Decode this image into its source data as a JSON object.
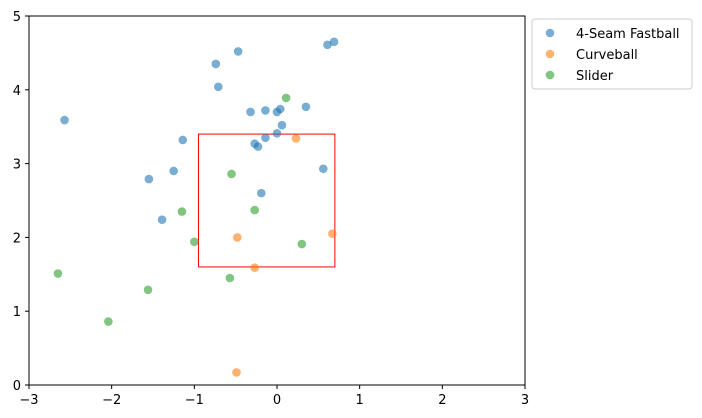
{
  "chart_data": {
    "type": "scatter",
    "title": "",
    "xlabel": "",
    "ylabel": "",
    "xlim": [
      -3,
      3
    ],
    "ylim": [
      0,
      5
    ],
    "xticks": [
      -3,
      -2,
      -1,
      0,
      1,
      2,
      3
    ],
    "yticks": [
      0,
      1,
      2,
      3,
      4,
      5
    ],
    "grid": false,
    "legend_position": "outside-upper-right",
    "strike_zone": {
      "x": [
        -0.95,
        0.7
      ],
      "y": [
        1.6,
        3.4
      ],
      "color": "#ff0000"
    },
    "series": [
      {
        "name": "4-Seam Fastball",
        "color": "#1f77b4",
        "points": [
          [
            -2.57,
            3.59
          ],
          [
            -0.74,
            4.35
          ],
          [
            -0.47,
            4.52
          ],
          [
            -0.71,
            4.04
          ],
          [
            0.61,
            4.61
          ],
          [
            0.69,
            4.65
          ],
          [
            -0.32,
            3.7
          ],
          [
            -0.14,
            3.72
          ],
          [
            0.0,
            3.7
          ],
          [
            0.04,
            3.74
          ],
          [
            0.35,
            3.77
          ],
          [
            0.06,
            3.52
          ],
          [
            0.0,
            3.41
          ],
          [
            -0.14,
            3.35
          ],
          [
            -0.27,
            3.27
          ],
          [
            -0.23,
            3.23
          ],
          [
            -1.14,
            3.32
          ],
          [
            -1.25,
            2.9
          ],
          [
            -1.55,
            2.79
          ],
          [
            0.56,
            2.93
          ],
          [
            -0.19,
            2.6
          ],
          [
            -1.39,
            2.24
          ]
        ]
      },
      {
        "name": "Curveball",
        "color": "#ff7f0e",
        "points": [
          [
            0.23,
            3.34
          ],
          [
            -0.48,
            2.0
          ],
          [
            0.67,
            2.05
          ],
          [
            -0.27,
            1.59
          ],
          [
            -0.49,
            0.17
          ]
        ]
      },
      {
        "name": "Slider",
        "color": "#2ca02c",
        "points": [
          [
            0.11,
            3.89
          ],
          [
            -0.55,
            2.86
          ],
          [
            -0.27,
            2.37
          ],
          [
            -1.15,
            2.35
          ],
          [
            -1.0,
            1.94
          ],
          [
            0.3,
            1.91
          ],
          [
            -0.57,
            1.45
          ],
          [
            -2.65,
            1.51
          ],
          [
            -1.56,
            1.29
          ],
          [
            -2.04,
            0.86
          ]
        ]
      }
    ]
  }
}
